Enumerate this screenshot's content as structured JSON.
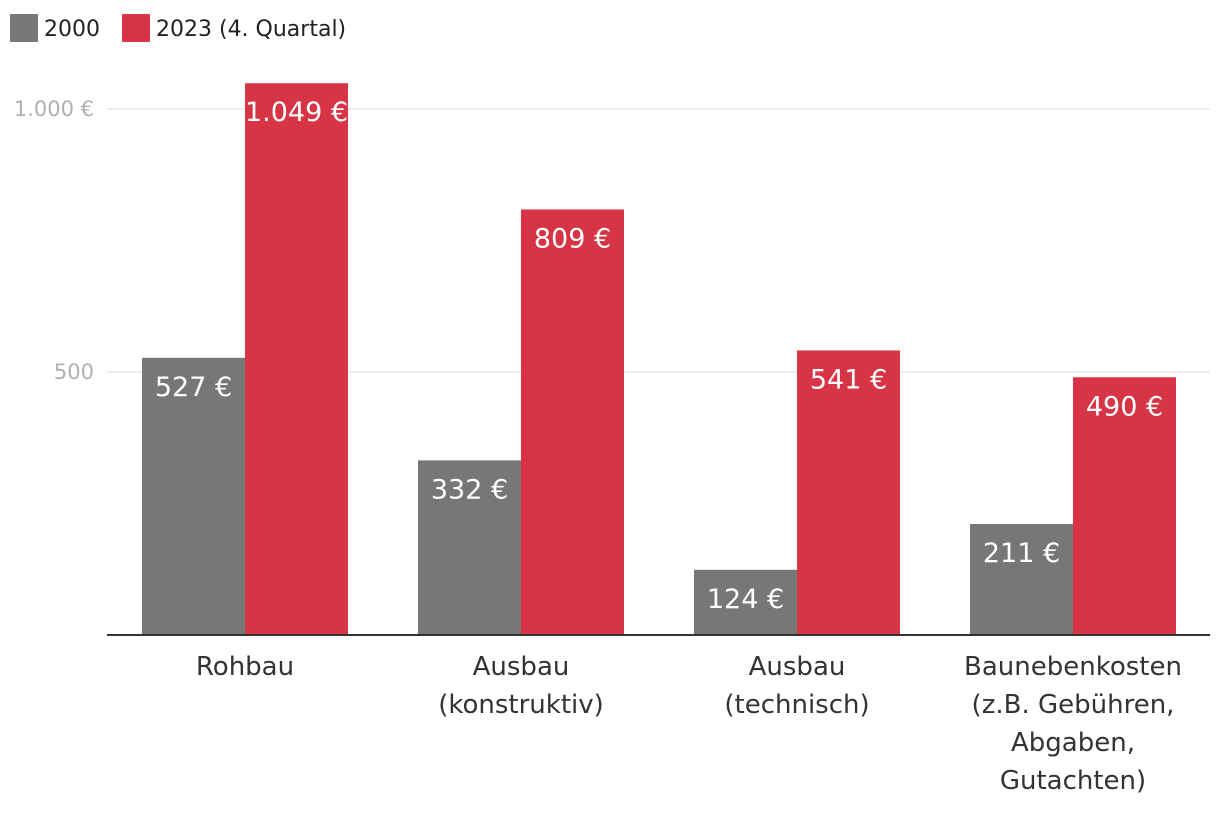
{
  "chart_data": {
    "type": "bar",
    "categories": [
      [
        "Rohbau"
      ],
      [
        "Ausbau",
        "(konstruktiv)"
      ],
      [
        "Ausbau",
        "(technisch)"
      ],
      [
        "Baunebenkosten",
        "(z.B. Gebühren,",
        "Abgaben,",
        "Gutachten)"
      ]
    ],
    "series": [
      {
        "name": "2000",
        "color": "#777777",
        "values": [
          527,
          332,
          124,
          211
        ],
        "labels": [
          "527 €",
          "332 €",
          "124 €",
          "211 €"
        ]
      },
      {
        "name": "2023 (4. Quartal)",
        "color": "#d73445",
        "values": [
          1049,
          809,
          541,
          490
        ],
        "labels": [
          "1.049 €",
          "809 €",
          "541 €",
          "490 €"
        ]
      }
    ],
    "ylim": [
      0,
      1000
    ],
    "yticks": [
      {
        "value": 500,
        "label": "500"
      },
      {
        "value": 1000,
        "label": "1.000 €"
      }
    ],
    "grid": true,
    "legend": "top-left"
  }
}
